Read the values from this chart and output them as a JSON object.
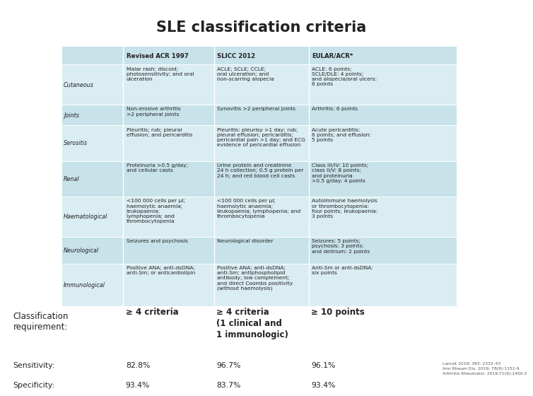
{
  "title": "SLE classification criteria",
  "title_bg": "#b0d8e3",
  "title_fontsize": 15,
  "title_fontweight": "bold",
  "table_bg_light": "#daedf2",
  "table_bg_dark": "#c8e2e9",
  "header_row": [
    "",
    "Revised ACR 1997",
    "SLICC 2012",
    "EULAR/ACR*"
  ],
  "rows": [
    {
      "category": "Cutaneous",
      "acr1997": "Malar rash; discoid;\nphotosensitivity; and oral\nulceration",
      "slicc2012": "ACLE; SCLE; CCLE;\noral ulceration; and\nnon-scarring alopecia",
      "eular": "ACLE: 6 points;\nSCLE/DLE: 4 points;\nand alopecia/oral ulcers:\n6 points"
    },
    {
      "category": "Joints",
      "acr1997": "Non-erosive arthritis\n>2 peripheral joints",
      "slicc2012": "Synovitis >2 peripheral joints",
      "eular": "Arthritis: 6 points"
    },
    {
      "category": "Serositis",
      "acr1997": "Pleuritis; rub; pleural\neffusion; and pericarditis",
      "slicc2012": "Pleuritis: pleurisy >1 day; rub;\npleural effusion; pericarditis;\npericardial pain >1 day; and ECG\nevidence of pericardial effusion",
      "eular": "Acute pericarditis:\n6 points; and effusion:\n5 points"
    },
    {
      "category": "Renal",
      "acr1997": "Proteinuria >0.5 g/day;\nand cellular casts",
      "slicc2012": "Urine protein and creatinine\n24 h collection; 0.5 g protein per\n24 h; and red blood cell casts",
      "eular": "Class III/IV: 10 points;\nclass II/V: 8 points;\nand proteinuria\n>0.5 g/day: 4 points"
    },
    {
      "category": "Haematological",
      "acr1997": "<100 000 cells per μl;\nhaemolytic anaemia;\nleukopaenia;\nlymphopenia; and\nthrombocytopenia",
      "slicc2012": "<100 000 cells per μl;\nhaemolytic anaemia;\nleukopaenia; lymphopenia; and\nthrombocytopenia",
      "eular": "Autoimmune haemolysis\nor thrombocytopenia:\nfour points; leukopaenia:\n3 points"
    },
    {
      "category": "Neurological",
      "acr1997": "Seizures and psychosis",
      "slicc2012": "Neurological disorder",
      "eular": "Seizures: 5 points;\npsychosis: 3 points;\nand delirium: 2 points"
    },
    {
      "category": "Immunological",
      "acr1997": "Positive ANA; anti-dsDNA;\nanti-Sm; or anticardiolipin",
      "slicc2012": "Positive ANA; anti-dsDNA;\nanti-Sm; antiphospholipid\nantibody; low complement;\nand direct Coombs positivity\n(without haemolysis)",
      "eular": "Anti-Sm or anti-dsDNA:\nsix points"
    }
  ],
  "classification_label": "Classification\nrequirement:",
  "classification_values": [
    "≥ 4 criteria",
    "≥ 4 criteria\n(1 clinical and\n1 immunologic)",
    "≥ 10 points"
  ],
  "sensitivity_label": "Sensitivity:",
  "sensitivity_values": [
    "82.8%",
    "96.7%",
    "96.1%"
  ],
  "specificity_label": "Specificity:",
  "specificity_values": [
    "93.4%",
    "83.7%",
    "93.4%"
  ],
  "footnote": "Lancet 2019; 393: 2332–43\nAnn Rheum Dis. 2019; 78(9):1151-9\nArthritis Rheumatol. 2019;71(9):1400-2",
  "white_bg": "#ffffff",
  "text_color": "#222222"
}
